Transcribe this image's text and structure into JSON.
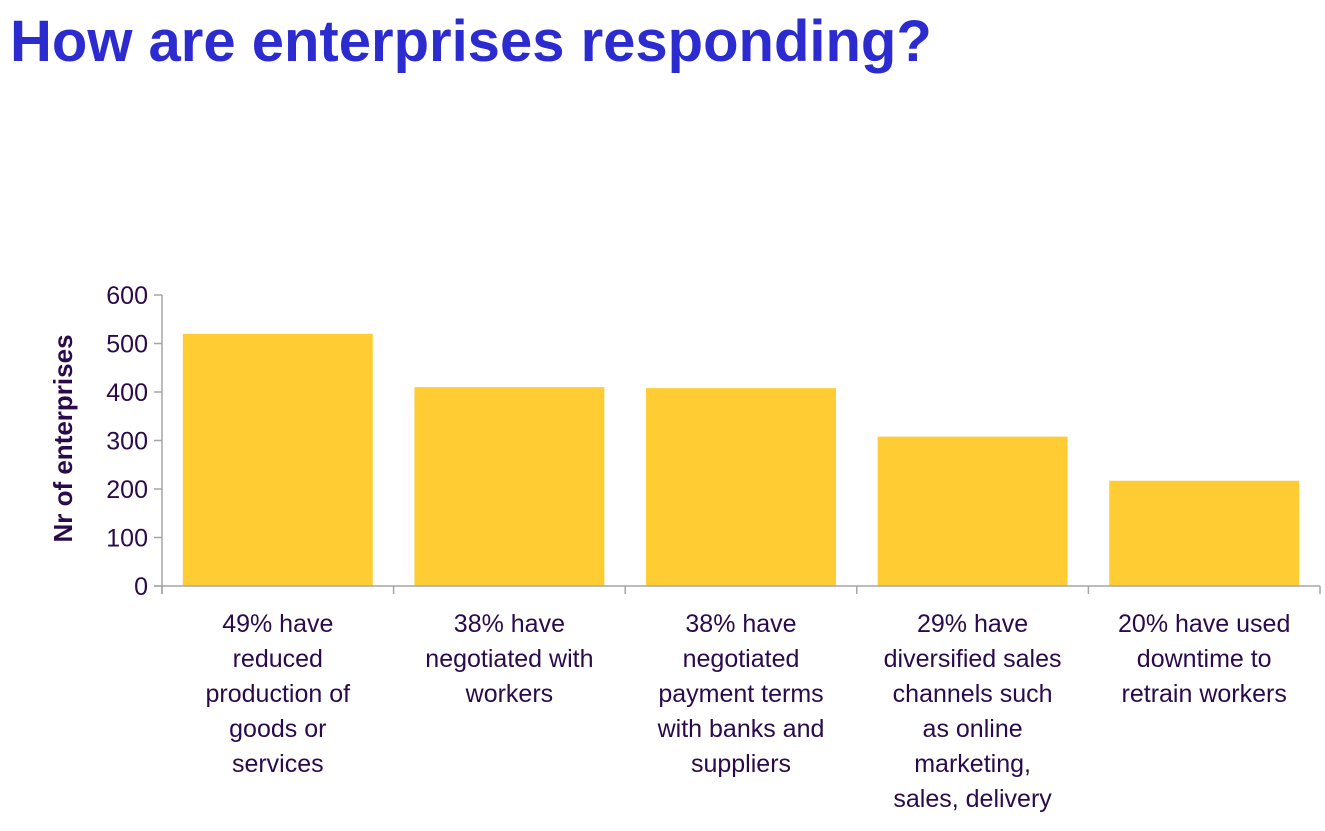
{
  "title": "How are enterprises responding?",
  "colors": {
    "title": "#2b2bd0",
    "bar": "#ffcc33",
    "axis": "#a6a6a6",
    "text": "#2a0a4a"
  },
  "chart_data": {
    "type": "bar",
    "title": "",
    "xlabel": "",
    "ylabel": "Nr of enterprises",
    "ylim": [
      0,
      600
    ],
    "yticks": [
      0,
      100,
      200,
      300,
      400,
      500,
      600
    ],
    "grid": false,
    "categories": [
      [
        "49% have",
        "reduced",
        "production of",
        "goods or",
        "services"
      ],
      [
        "38% have",
        "negotiated with",
        "workers"
      ],
      [
        "38% have",
        "negotiated",
        "payment terms",
        "with banks and",
        "suppliers"
      ],
      [
        "29% have",
        "diversified sales",
        "channels such",
        "as online",
        "marketing,",
        "sales, delivery"
      ],
      [
        "20% have used",
        "downtime to",
        "retrain workers"
      ]
    ],
    "values": [
      520,
      410,
      408,
      308,
      217
    ]
  }
}
